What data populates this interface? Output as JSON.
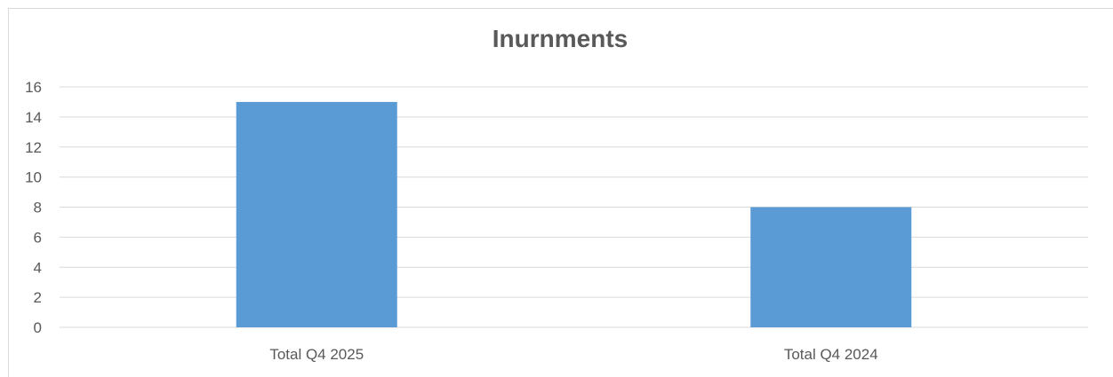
{
  "chart_data": {
    "type": "bar",
    "title": "Inurnments",
    "categories": [
      "Total Q4 2025",
      "Total Q4 2024"
    ],
    "series": [
      {
        "values": [
          15,
          8
        ]
      }
    ],
    "ylim": [
      0,
      16
    ],
    "yticks": [
      0,
      2,
      4,
      6,
      8,
      10,
      12,
      14,
      16
    ],
    "grid": true,
    "bar_color": "#5b9bd5",
    "grid_color": "#d9d9d9"
  }
}
